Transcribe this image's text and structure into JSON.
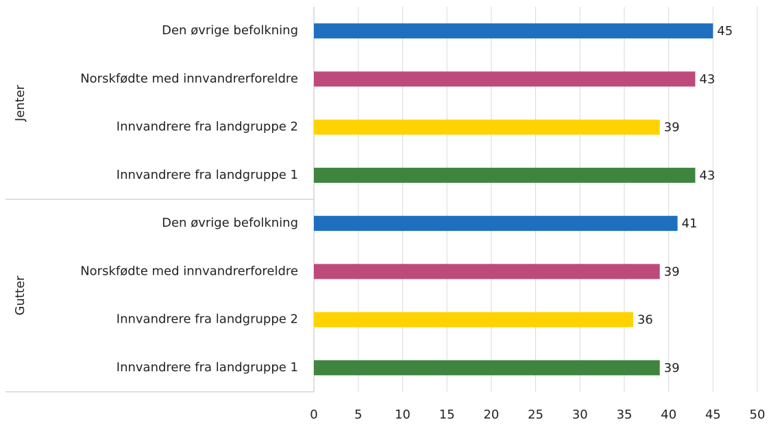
{
  "chart_data": {
    "type": "bar",
    "orientation": "horizontal",
    "groups": [
      {
        "name": "Jenter",
        "categories": [
          "Den øvrige befolkning",
          "Norskfødte med innvandrerforeldre",
          "Innvandrere fra landgruppe 2",
          "Innvandrere fra landgruppe 1"
        ],
        "values": [
          45,
          43,
          39,
          43
        ]
      },
      {
        "name": "Gutter",
        "categories": [
          "Den øvrige befolkning",
          "Norskfødte med innvandrerforeldre",
          "Innvandrere fra landgruppe 2",
          "Innvandrere fra landgruppe 1"
        ],
        "values": [
          41,
          39,
          36,
          39
        ]
      }
    ],
    "colors": [
      "#1f6fbf",
      "#bc4b7b",
      "#ffd200",
      "#3f843f"
    ],
    "xlim": [
      0,
      50
    ],
    "xticks": [
      0,
      5,
      10,
      15,
      20,
      25,
      30,
      35,
      40,
      45,
      50
    ],
    "grid": true
  }
}
